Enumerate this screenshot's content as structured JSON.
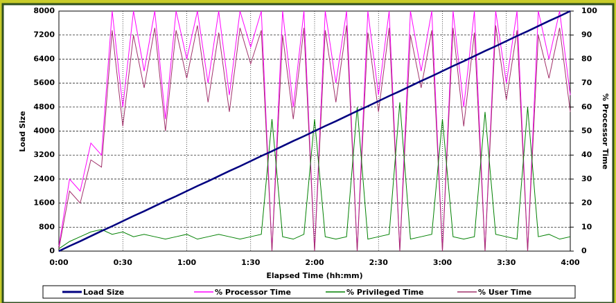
{
  "chart_data": {
    "type": "line",
    "y_label": "Load Size",
    "y2_label": "% Processor Time",
    "x_label": "Elapsed Time (hh:mm)",
    "x": [
      0,
      5,
      10,
      15,
      20,
      25,
      30,
      35,
      40,
      45,
      50,
      55,
      60,
      65,
      70,
      75,
      80,
      85,
      90,
      95,
      100,
      105,
      110,
      115,
      120,
      125,
      130,
      135,
      140,
      145,
      150,
      155,
      160,
      165,
      170,
      175,
      180,
      185,
      190,
      195,
      200,
      205,
      210,
      215,
      220,
      225,
      230,
      235,
      240
    ],
    "xlim": [
      0,
      240
    ],
    "xticks": [
      {
        "value": 0,
        "label": "0:00"
      },
      {
        "value": 30,
        "label": "0:30"
      },
      {
        "value": 60,
        "label": "1:00"
      },
      {
        "value": 90,
        "label": "1:30"
      },
      {
        "value": 120,
        "label": "2:00"
      },
      {
        "value": 150,
        "label": "2:30"
      },
      {
        "value": 180,
        "label": "3:00"
      },
      {
        "value": 210,
        "label": "3:30"
      },
      {
        "value": 240,
        "label": "4:00"
      }
    ],
    "ylim": [
      0,
      8000
    ],
    "yticks": [
      0,
      800,
      1600,
      2400,
      3200,
      4000,
      4800,
      5600,
      6400,
      7200,
      8000
    ],
    "y2lim": [
      0,
      100
    ],
    "y2ticks": [
      0,
      10,
      20,
      30,
      40,
      50,
      60,
      70,
      80,
      90,
      100
    ],
    "grid": true,
    "series": [
      {
        "name": "Load Size",
        "color": "#000080",
        "values": [
          0,
          170,
          330,
          500,
          670,
          830,
          1000,
          1170,
          1330,
          1500,
          1670,
          1830,
          2000,
          2170,
          2330,
          2500,
          2670,
          2830,
          3000,
          3170,
          3330,
          3500,
          3670,
          3830,
          4000,
          4170,
          4330,
          4500,
          4670,
          4830,
          5000,
          5170,
          5330,
          5500,
          5670,
          5830,
          6000,
          6170,
          6330,
          6500,
          6670,
          6830,
          7000,
          7170,
          7330,
          7500,
          7670,
          7830,
          8000
        ]
      },
      {
        "name": "% Processor Time",
        "color": "#ff00ff",
        "axis": "y2",
        "values": [
          2,
          30,
          25,
          45,
          40,
          100,
          60,
          100,
          75,
          100,
          55,
          100,
          80,
          100,
          70,
          100,
          65,
          100,
          85,
          100,
          0,
          100,
          60,
          100,
          0,
          100,
          70,
          100,
          0,
          100,
          65,
          100,
          0,
          100,
          75,
          100,
          0,
          100,
          60,
          100,
          0,
          100,
          70,
          100,
          0,
          100,
          80,
          100,
          65
        ]
      },
      {
        "name": "% Privileged Time",
        "color": "#008000",
        "axis": "y2",
        "values": [
          1,
          4,
          6,
          8,
          9,
          7,
          8,
          6,
          7,
          6,
          5,
          6,
          7,
          5,
          6,
          7,
          6,
          5,
          6,
          7,
          55,
          6,
          5,
          7,
          55,
          6,
          5,
          6,
          60,
          5,
          6,
          7,
          62,
          5,
          6,
          7,
          55,
          6,
          5,
          6,
          58,
          7,
          6,
          5,
          60,
          6,
          7,
          5,
          6
        ]
      },
      {
        "name": "% User Time",
        "color": "#a0306a",
        "axis": "y2",
        "values": [
          1,
          25,
          20,
          38,
          35,
          92,
          52,
          90,
          68,
          93,
          50,
          92,
          72,
          94,
          62,
          91,
          58,
          93,
          78,
          92,
          0,
          90,
          55,
          93,
          0,
          92,
          62,
          94,
          0,
          91,
          58,
          93,
          0,
          90,
          68,
          92,
          0,
          93,
          52,
          91,
          0,
          94,
          63,
          92,
          0,
          90,
          72,
          93,
          58
        ]
      }
    ]
  }
}
